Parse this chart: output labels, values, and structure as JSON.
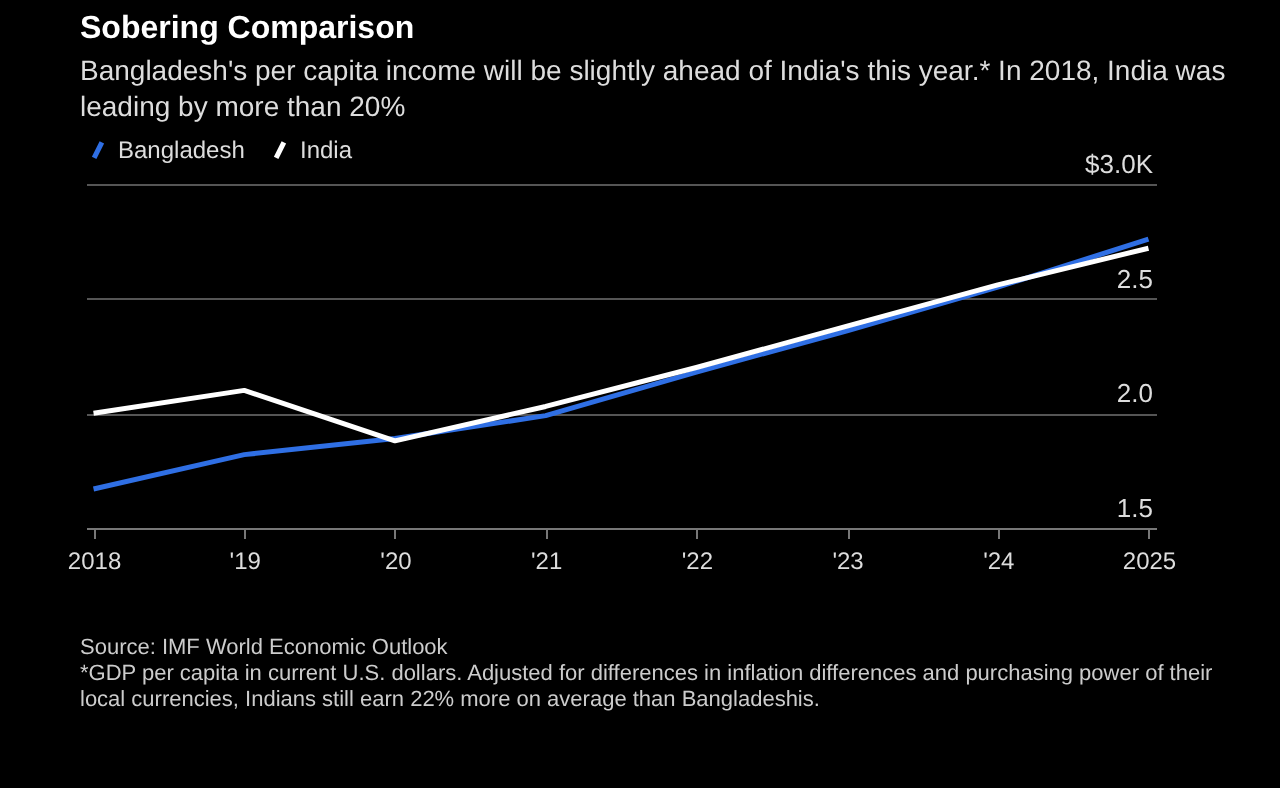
{
  "chart_data": {
    "type": "line",
    "title": "Sobering Comparison",
    "subtitle": "Bangladesh's per capita income will be slightly ahead of India's this year.* In 2018, India was leading by more than 20%",
    "categories": [
      "2018",
      "'19",
      "'20",
      "'21",
      "'22",
      "'23",
      "'24",
      "2025"
    ],
    "series": [
      {
        "name": "Bangladesh",
        "color": "#2f6fe4",
        "values": [
          1.67,
          1.82,
          1.89,
          1.99,
          2.18,
          2.36,
          2.55,
          2.76
        ]
      },
      {
        "name": "India",
        "color": "#ffffff",
        "values": [
          2.0,
          2.1,
          1.88,
          2.03,
          2.2,
          2.38,
          2.56,
          2.72
        ]
      }
    ],
    "ylim": [
      1.5,
      3.0
    ],
    "yticks": [
      1.5,
      {
        "value": 2,
        "label": "2.0"
      },
      2.5,
      {
        "value": 3,
        "label": "$3.0K"
      }
    ],
    "grid": "y",
    "legend": "top left",
    "annotations": [
      "Source: IMF World Economic Outlook",
      "*GDP per capita in current U.S. dollars. Adjusted for differences in inflation differences and purchasing power of their local currencies, Indians still earn 22% more on average than Bangladeshis."
    ]
  }
}
